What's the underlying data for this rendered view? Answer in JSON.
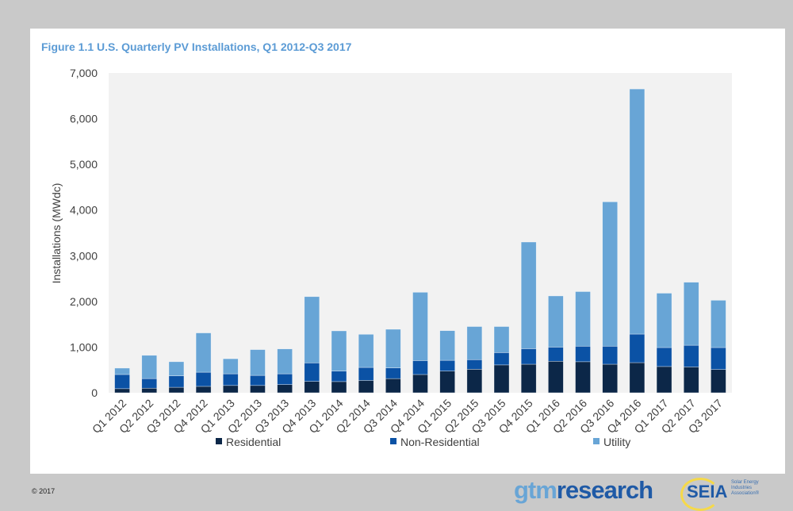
{
  "chart_data": {
    "type": "bar",
    "stacked": true,
    "title": "Figure 1.1 U.S. Quarterly PV Installations, Q1 2012-Q3 2017",
    "ylabel": "Installations (MWdc)",
    "xlabel": "",
    "ylim": [
      0,
      7000
    ],
    "yticks": [
      "0",
      "1,000",
      "2,000",
      "3,000",
      "4,000",
      "5,000",
      "6,000",
      "7,000"
    ],
    "grid": false,
    "legend_placement": "bottom",
    "categories": [
      "Q1 2012",
      "Q2 2012",
      "Q3 2012",
      "Q4 2012",
      "Q1 2013",
      "Q2 2013",
      "Q3 2013",
      "Q4 2013",
      "Q1 2014",
      "Q2 2014",
      "Q3 2014",
      "Q4 2014",
      "Q1 2015",
      "Q2 2015",
      "Q3 2015",
      "Q4 2015",
      "Q1 2016",
      "Q2 2016",
      "Q3 2016",
      "Q4 2016",
      "Q1 2017",
      "Q2 2017",
      "Q3 2017"
    ],
    "series": [
      {
        "name": "Residential",
        "color": "#0c2748",
        "values": [
          90,
          100,
          120,
          140,
          160,
          160,
          180,
          250,
          245,
          270,
          310,
          400,
          475,
          515,
          610,
          625,
          690,
          680,
          625,
          660,
          575,
          565,
          510
        ]
      },
      {
        "name": "Non-Residential",
        "color": "#0b52a5",
        "values": [
          310,
          210,
          250,
          310,
          255,
          220,
          235,
          405,
          230,
          285,
          235,
          305,
          235,
          210,
          270,
          340,
          310,
          340,
          395,
          625,
          415,
          475,
          480
        ]
      },
      {
        "name": "Utility",
        "color": "#68a5d6",
        "values": [
          140,
          510,
          310,
          860,
          330,
          565,
          545,
          1450,
          880,
          725,
          845,
          1495,
          650,
          725,
          570,
          2335,
          1120,
          1195,
          3160,
          5365,
          1190,
          1380,
          1035
        ]
      }
    ]
  },
  "footer": {
    "copyright": "© 2017",
    "logo_gtm": "gtmresearch",
    "logo_seia": "SEIA",
    "logo_seia_sub": "Solar Energy Industries Association®"
  }
}
